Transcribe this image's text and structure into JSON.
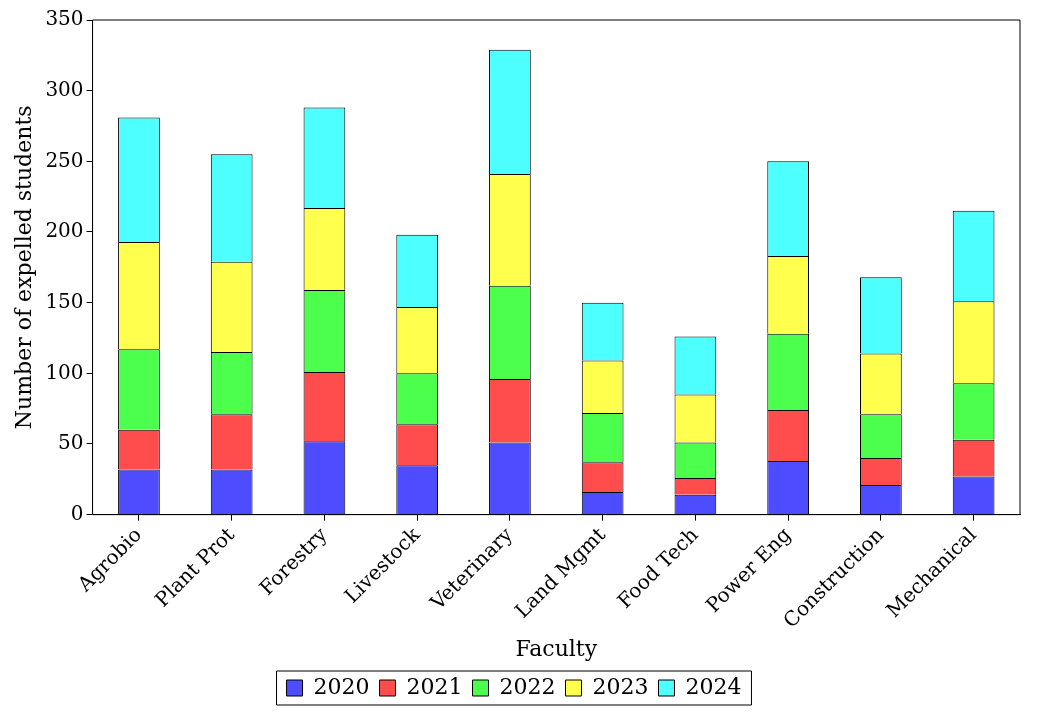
{
  "chart_data": {
    "type": "bar",
    "stacked": true,
    "xlabel": "Faculty",
    "ylabel": "Number of expelled students",
    "categories": [
      "Agrobio",
      "Plant Prot",
      "Forestry",
      "Livestock",
      "Veterinary",
      "Land Mgmt",
      "Food Tech",
      "Power Eng",
      "Construction",
      "Mechanical"
    ],
    "series": [
      {
        "name": "2020",
        "color": "#4d4dff",
        "values": [
          32,
          32,
          52,
          35,
          51,
          16,
          14,
          38,
          21,
          27
        ]
      },
      {
        "name": "2021",
        "color": "#ff4d4d",
        "values": [
          28,
          39,
          49,
          29,
          45,
          21,
          12,
          36,
          19,
          26
        ]
      },
      {
        "name": "2022",
        "color": "#4dff4d",
        "values": [
          57,
          44,
          58,
          36,
          66,
          35,
          25,
          54,
          31,
          40
        ]
      },
      {
        "name": "2023",
        "color": "#ffff4d",
        "values": [
          76,
          64,
          58,
          47,
          79,
          37,
          34,
          55,
          43,
          58
        ]
      },
      {
        "name": "2024",
        "color": "#4dffff",
        "values": [
          88,
          76,
          71,
          51,
          88,
          41,
          41,
          67,
          54,
          64
        ]
      }
    ],
    "ylim": [
      0,
      350
    ],
    "yticks": [
      0,
      50,
      100,
      150,
      200,
      250,
      300,
      350
    ],
    "grid": false,
    "legend": "bottom"
  }
}
